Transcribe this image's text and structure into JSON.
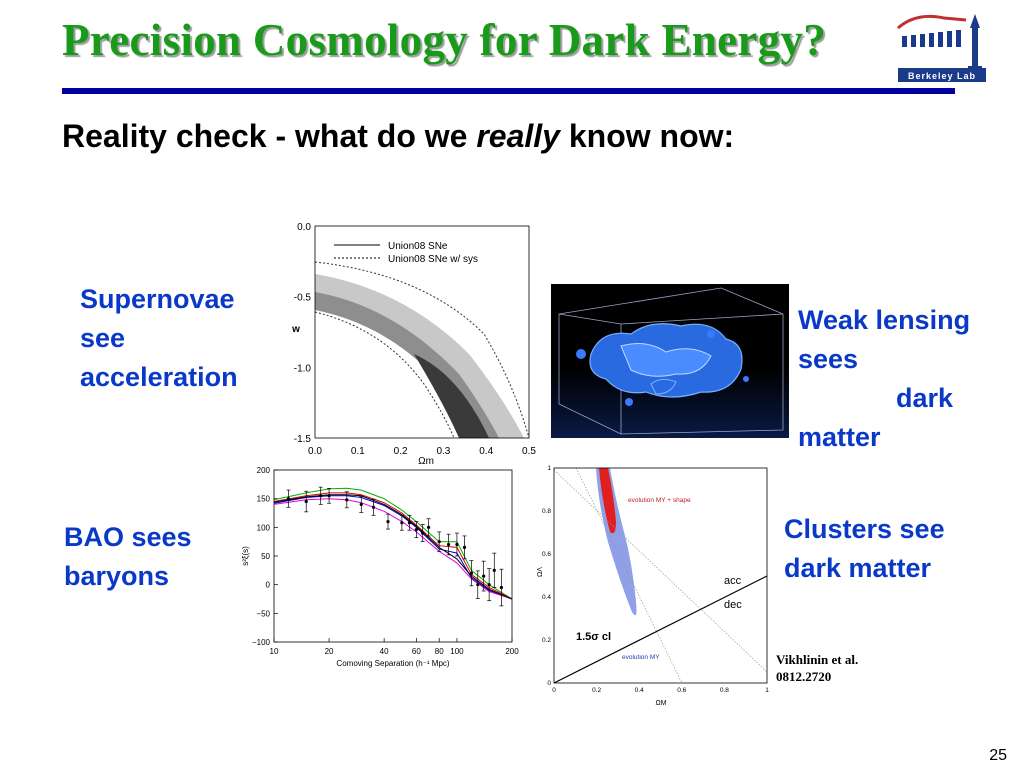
{
  "slide": {
    "title": "Precision Cosmology for Dark Energy?",
    "subtitle_pre": "Reality check - what do we ",
    "subtitle_em": "really",
    "subtitle_post": " know now:",
    "page_number": "25",
    "logo_text": "Berkeley Lab",
    "colors": {
      "title": "#1a9a1a",
      "rule": "#0000a0",
      "accent_text": "#0a38c8"
    }
  },
  "labels": {
    "sn_line1": "Supernovae",
    "sn_line2": "see",
    "sn_line3": "acceleration",
    "wl_line1": "Weak lensing",
    "wl_line2": "sees",
    "wl_line3": "dark",
    "wl_line4": "matter",
    "bao_line1": "BAO sees",
    "bao_line2": "baryons",
    "cl_line1": "Clusters see",
    "cl_line2": "dark matter",
    "cite_line1": "Vikhlinin et al.",
    "cite_line2": "0812.2720"
  },
  "chart_data": [
    {
      "type": "contour",
      "xlabel": "Ωm",
      "ylabel": "w",
      "xlim": [
        0.0,
        0.5
      ],
      "ylim": [
        -1.5,
        0.0
      ],
      "x_ticks": [
        "0.0",
        "0.1",
        "0.2",
        "0.3",
        "0.4",
        "0.5"
      ],
      "y_ticks": [
        "0.0",
        "-0.5",
        "-1.0",
        "-1.5"
      ],
      "legend": [
        "Union08 SNe",
        "Union08 SNe w/ sys"
      ],
      "legend_position": "top-right"
    },
    {
      "type": "line",
      "xlabel": "Comoving Separation (h⁻¹ Mpc)",
      "ylabel": "s²ξ(s)",
      "x_scale": "log",
      "xlim": [
        10,
        200
      ],
      "ylim": [
        -100,
        200
      ],
      "x_ticks": [
        "10",
        "20",
        "40",
        "60",
        "80",
        "100",
        "200"
      ],
      "y_ticks": [
        "200",
        "150",
        "100",
        "50",
        "0",
        "−50",
        "−100"
      ],
      "series": [
        {
          "color": "#00b000",
          "x": [
            10,
            15,
            20,
            25,
            30,
            40,
            50,
            60,
            80,
            100,
            120,
            150,
            200
          ],
          "y": [
            148,
            160,
            167,
            168,
            165,
            150,
            130,
            110,
            75,
            75,
            25,
            0,
            -25
          ]
        },
        {
          "color": "#e00000",
          "x": [
            10,
            15,
            20,
            25,
            30,
            40,
            50,
            60,
            80,
            100,
            120,
            150,
            200
          ],
          "y": [
            145,
            155,
            160,
            160,
            157,
            143,
            125,
            104,
            68,
            65,
            18,
            -5,
            -25
          ]
        },
        {
          "color": "#0000d0",
          "x": [
            10,
            15,
            20,
            25,
            30,
            40,
            50,
            60,
            80,
            100,
            120,
            150,
            200
          ],
          "y": [
            142,
            152,
            155,
            155,
            152,
            138,
            120,
            100,
            62,
            55,
            12,
            -10,
            -25
          ]
        },
        {
          "color": "#e000e0",
          "x": [
            10,
            15,
            20,
            25,
            30,
            40,
            50,
            60,
            80,
            100,
            120,
            150,
            200
          ],
          "y": [
            140,
            148,
            150,
            148,
            143,
            128,
            110,
            92,
            58,
            38,
            10,
            -12,
            -25
          ]
        },
        {
          "color": "#000000",
          "x": [
            10,
            15,
            20,
            25,
            30,
            40,
            50,
            60,
            80,
            100,
            120,
            150,
            200
          ],
          "y": [
            144,
            153,
            157,
            157,
            155,
            140,
            122,
            102,
            65,
            45,
            15,
            -8,
            -25
          ]
        }
      ],
      "points": {
        "x": [
          12,
          15,
          18,
          20,
          25,
          30,
          35,
          42,
          50,
          55,
          60,
          65,
          70,
          80,
          90,
          100,
          110,
          120,
          130,
          140,
          150,
          160,
          175
        ],
        "y": [
          150,
          145,
          155,
          155,
          148,
          140,
          135,
          110,
          108,
          108,
          96,
          90,
          100,
          75,
          70,
          70,
          65,
          20,
          0,
          15,
          0,
          25,
          -5
        ],
        "err": [
          15,
          18,
          15,
          13,
          14,
          14,
          14,
          13,
          13,
          13,
          14,
          15,
          15,
          17,
          18,
          20,
          20,
          22,
          24,
          26,
          28,
          30,
          32
        ]
      }
    },
    {
      "type": "contour",
      "xlabel": "ΩM",
      "ylabel": "ΩΛ",
      "xlim": [
        0,
        1
      ],
      "ylim": [
        0,
        1
      ],
      "x_ticks": [
        "0",
        "0.2",
        "0.4",
        "0.6",
        "0.8",
        "1"
      ],
      "y_ticks": [
        "1",
        "0.8",
        "0.6",
        "0.4",
        "0.2",
        "0"
      ],
      "legend": [
        "evolution MY + shape",
        "evolution MY"
      ],
      "annotations": [
        "acc",
        "dec",
        "1.5σ cl"
      ]
    }
  ]
}
